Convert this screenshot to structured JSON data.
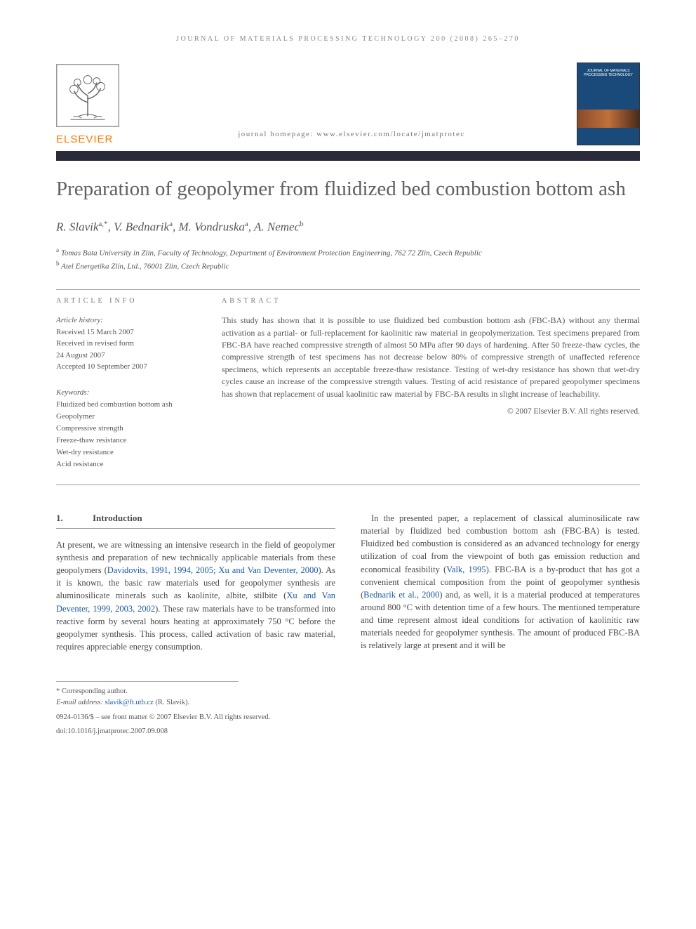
{
  "running_header": "JOURNAL OF MATERIALS PROCESSING TECHNOLOGY 200 (2008) 265–270",
  "publisher_logo_text": "ELSEVIER",
  "homepage_label": "journal homepage: www.elsevier.com/locate/jmatprotec",
  "cover_label": "JOURNAL OF MATERIALS PROCESSING TECHNOLOGY",
  "title": "Preparation of geopolymer from fluidized bed combustion bottom ash",
  "authors_html": "R. Slavik|a,*|, V. Bednarik|a|, M. Vondruska|a|, A. Nemec|b|",
  "authors": [
    {
      "name": "R. Slavik",
      "sup": "a,*"
    },
    {
      "name": "V. Bednarik",
      "sup": "a"
    },
    {
      "name": "M. Vondruska",
      "sup": "a"
    },
    {
      "name": "A. Nemec",
      "sup": "b"
    }
  ],
  "affiliations": [
    "a Tomas Bata University in Zlin, Faculty of Technology, Department of Environment Protection Engineering, 762 72 Zlin, Czech Republic",
    "b Atel Energetika Zlín, Ltd., 76001 Zlin, Czech Republic"
  ],
  "article_info_label": "ARTICLE INFO",
  "abstract_label": "ABSTRACT",
  "history_heading": "Article history:",
  "history": [
    "Received 15 March 2007",
    "Received in revised form",
    "24 August 2007",
    "Accepted 10 September 2007"
  ],
  "keywords_heading": "Keywords:",
  "keywords": [
    "Fluidized bed combustion bottom ash",
    "Geopolymer",
    "Compressive strength",
    "Freeze-thaw resistance",
    "Wet-dry resistance",
    "Acid resistance"
  ],
  "abstract_text": "This study has shown that it is possible to use fluidized bed combustion bottom ash (FBC-BA) without any thermal activation as a partial- or full-replacement for kaolinitic raw material in geopolymerization. Test specimens prepared from FBC-BA have reached compressive strength of almost 50 MPa after 90 days of hardening. After 50 freeze-thaw cycles, the compressive strength of test specimens has not decrease below 80% of compressive strength of unaffected reference specimens, which represents an acceptable freeze-thaw resistance. Testing of wet-dry resistance has shown that wet-dry cycles cause an increase of the compressive strength values. Testing of acid resistance of prepared geopolymer specimens has shown that replacement of usual kaolinitic raw material by FBC-BA results in slight increase of leachability.",
  "copyright": "© 2007 Elsevier B.V. All rights reserved.",
  "section1_num": "1.",
  "section1_name": "Introduction",
  "col1_text": "At present, we are witnessing an intensive research in the field of geopolymer synthesis and preparation of new technically applicable materials from these geopolymers (Davidovits, 1991, 1994, 2005; Xu and Van Deventer, 2000). As it is known, the basic raw materials used for geopolymer synthesis are aluminosilicate minerals such as kaolinite, albite, stilbite (Xu and Van Deventer, 1999, 2003, 2002). These raw materials have to be transformed into reactive form by several hours heating at approximately 750 °C before the geopolymer synthesis. This process, called activation of basic raw material, requires appreciable energy consumption.",
  "col1_cites": [
    "Davidovits, 1991, 1994, 2005; Xu and Van Deventer, 2000",
    "Xu and Van Deventer, 1999, 2003, 2002"
  ],
  "col2_text": "In the presented paper, a replacement of classical aluminosilicate raw material by fluidized bed combustion bottom ash (FBC-BA) is tested. Fluidized bed combustion is considered as an advanced technology for energy utilization of coal from the viewpoint of both gas emission reduction and economical feasibility (Valk, 1995). FBC-BA is a by-product that has got a convenient chemical composition from the point of geopolymer synthesis (Bednarik et al., 2000) and, as well, it is a material produced at temperatures around 800 °C with detention time of a few hours. The mentioned temperature and time represent almost ideal conditions for activation of kaolinitic raw materials needed for geopolymer synthesis. The amount of produced FBC-BA is relatively large at present and it will be",
  "col2_cites": [
    "Valk, 1995",
    "Bednarik et al., 2000"
  ],
  "corresponding_label": "* Corresponding author.",
  "email_label": "E-mail address:",
  "email_value": "slavik@ft.utb.cz",
  "email_attr": "(R. Slavik).",
  "footer1": "0924-0136/$ – see front matter © 2007 Elsevier B.V. All rights reserved.",
  "footer2": "doi:10.1016/j.jmatprotec.2007.09.008",
  "colors": {
    "elsevier_orange": "#ff7a00",
    "dark_bar": "#2a2a3a",
    "cover_blue": "#1a4a7a",
    "link_blue": "#1a5aa8",
    "text_gray": "#4a4a4a"
  }
}
